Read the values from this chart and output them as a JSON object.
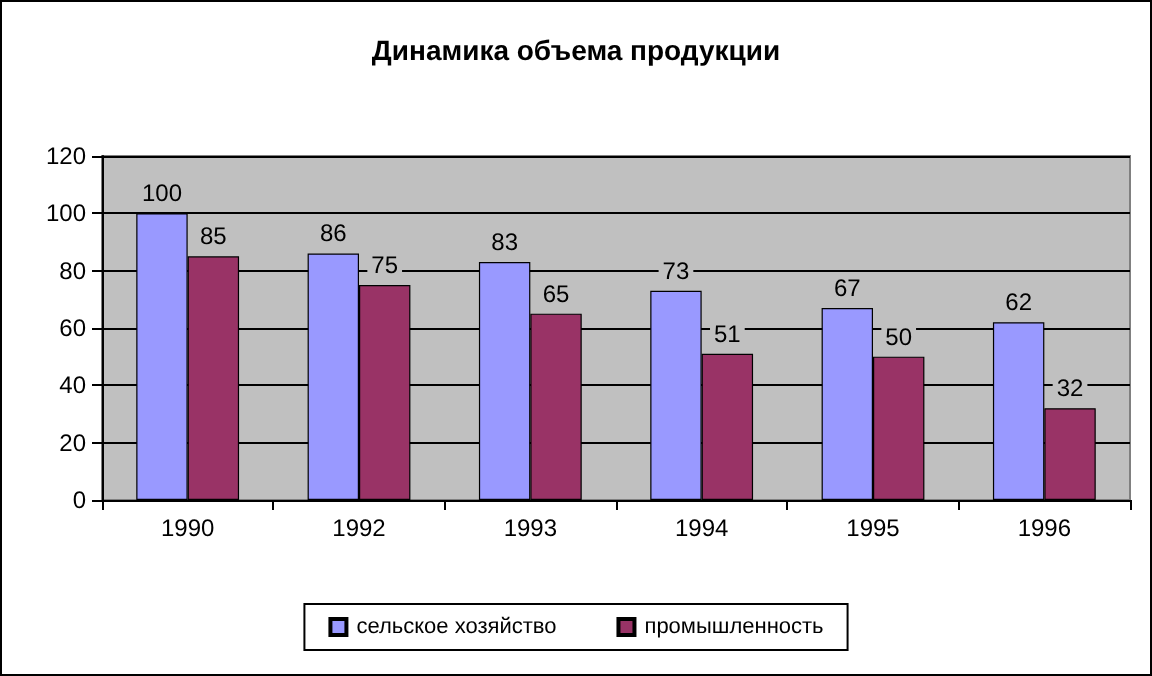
{
  "chart_data": {
    "type": "bar",
    "title": "Динамика объема продукции",
    "categories": [
      "1990",
      "1992",
      "1993",
      "1994",
      "1995",
      "1996"
    ],
    "series": [
      {
        "name": "сельское хозяйство",
        "color": "#9999ff",
        "values": [
          100,
          86,
          83,
          73,
          67,
          62
        ]
      },
      {
        "name": "промышленность",
        "color": "#993366",
        "values": [
          85,
          75,
          65,
          51,
          50,
          32
        ]
      }
    ],
    "ylim": [
      0,
      120
    ],
    "yticks": [
      0,
      20,
      40,
      60,
      80,
      100,
      120
    ],
    "grid": "y",
    "legend": "bottom",
    "data_labels": true
  }
}
